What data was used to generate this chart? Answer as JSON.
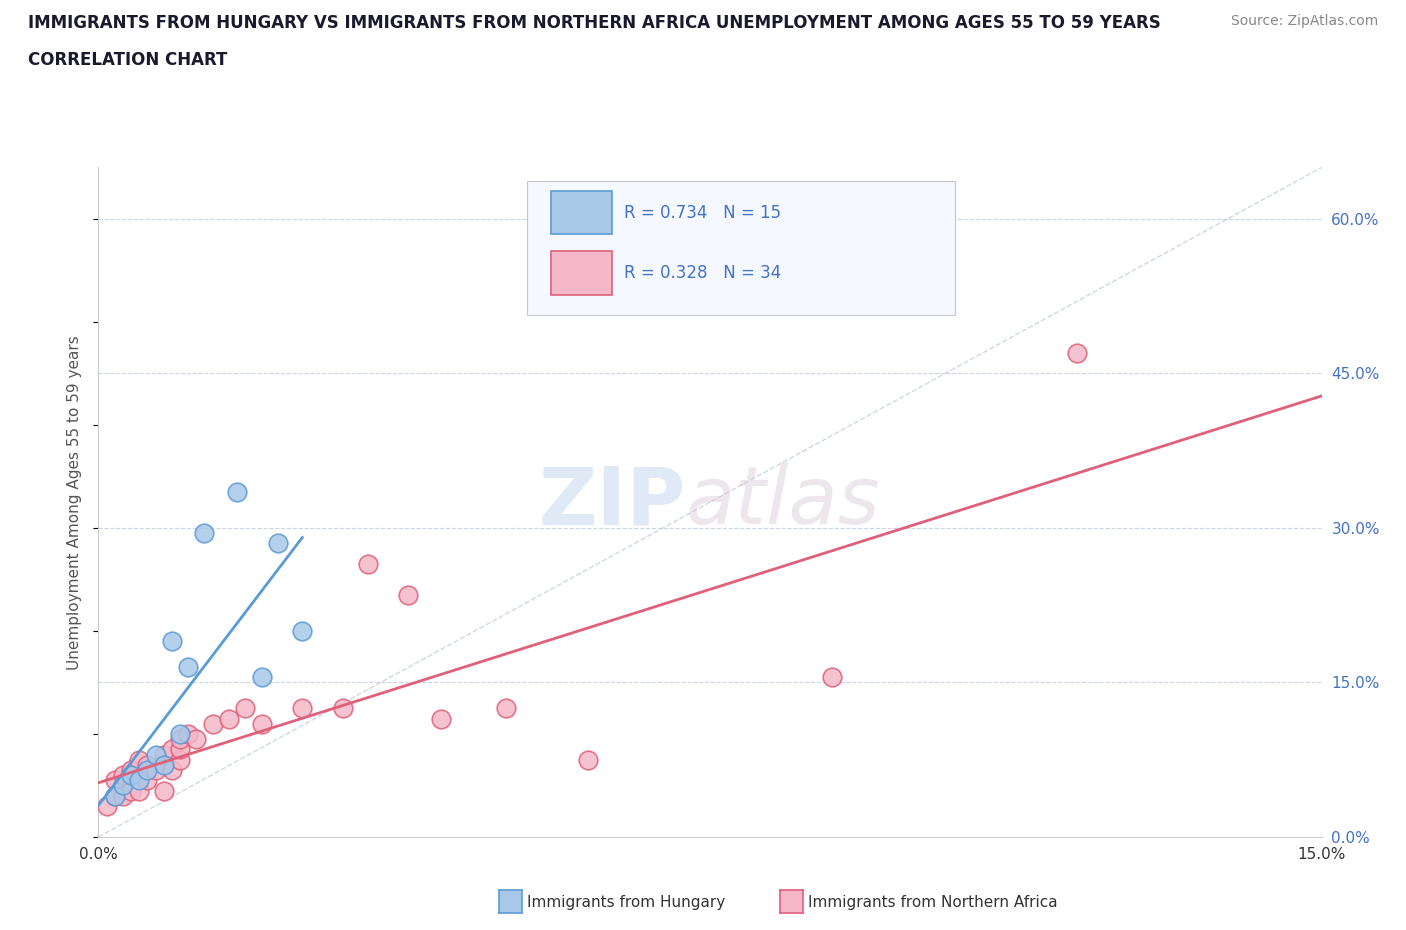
{
  "title_line1": "IMMIGRANTS FROM HUNGARY VS IMMIGRANTS FROM NORTHERN AFRICA UNEMPLOYMENT AMONG AGES 55 TO 59 YEARS",
  "title_line2": "CORRELATION CHART",
  "source": "Source: ZipAtlas.com",
  "ylabel": "Unemployment Among Ages 55 to 59 years",
  "xlim": [
    0.0,
    0.15
  ],
  "ylim": [
    0.0,
    0.65
  ],
  "xticks": [
    0.0,
    0.015,
    0.03,
    0.045,
    0.06,
    0.075,
    0.09,
    0.105,
    0.12,
    0.135,
    0.15
  ],
  "ytick_labels_right": [
    "0.0%",
    "15.0%",
    "30.0%",
    "45.0%",
    "60.0%"
  ],
  "yticks_right": [
    0.0,
    0.15,
    0.3,
    0.45,
    0.6
  ],
  "hungary_color": "#a8c8e8",
  "hungary_edge_color": "#5b9bd5",
  "na_color": "#f4b8c8",
  "na_edge_color": "#e0607a",
  "hungary_r": 0.734,
  "hungary_n": 15,
  "na_r": 0.328,
  "na_n": 34,
  "hungary_x": [
    0.002,
    0.003,
    0.004,
    0.005,
    0.006,
    0.007,
    0.008,
    0.009,
    0.01,
    0.011,
    0.013,
    0.017,
    0.02,
    0.022,
    0.025
  ],
  "hungary_y": [
    0.04,
    0.05,
    0.06,
    0.055,
    0.065,
    0.08,
    0.07,
    0.19,
    0.1,
    0.165,
    0.295,
    0.335,
    0.155,
    0.285,
    0.2
  ],
  "na_x": [
    0.001,
    0.002,
    0.002,
    0.003,
    0.003,
    0.004,
    0.004,
    0.005,
    0.005,
    0.006,
    0.006,
    0.007,
    0.008,
    0.008,
    0.009,
    0.009,
    0.01,
    0.01,
    0.01,
    0.011,
    0.012,
    0.014,
    0.016,
    0.018,
    0.02,
    0.025,
    0.03,
    0.033,
    0.038,
    0.042,
    0.05,
    0.06,
    0.09,
    0.12
  ],
  "na_y": [
    0.03,
    0.04,
    0.055,
    0.04,
    0.06,
    0.045,
    0.065,
    0.045,
    0.075,
    0.055,
    0.07,
    0.065,
    0.045,
    0.08,
    0.065,
    0.085,
    0.075,
    0.085,
    0.095,
    0.1,
    0.095,
    0.11,
    0.115,
    0.125,
    0.11,
    0.125,
    0.125,
    0.265,
    0.235,
    0.115,
    0.125,
    0.075,
    0.155,
    0.47
  ],
  "watermark_zip": "ZIP",
  "watermark_atlas": "atlas",
  "background_color": "#ffffff",
  "grid_color": "#c8d4e8",
  "title_fontsize": 12,
  "source_fontsize": 10,
  "legend_r_color": "#4472c4",
  "axis_label_color": "#555555",
  "right_tick_color": "#4472c4"
}
